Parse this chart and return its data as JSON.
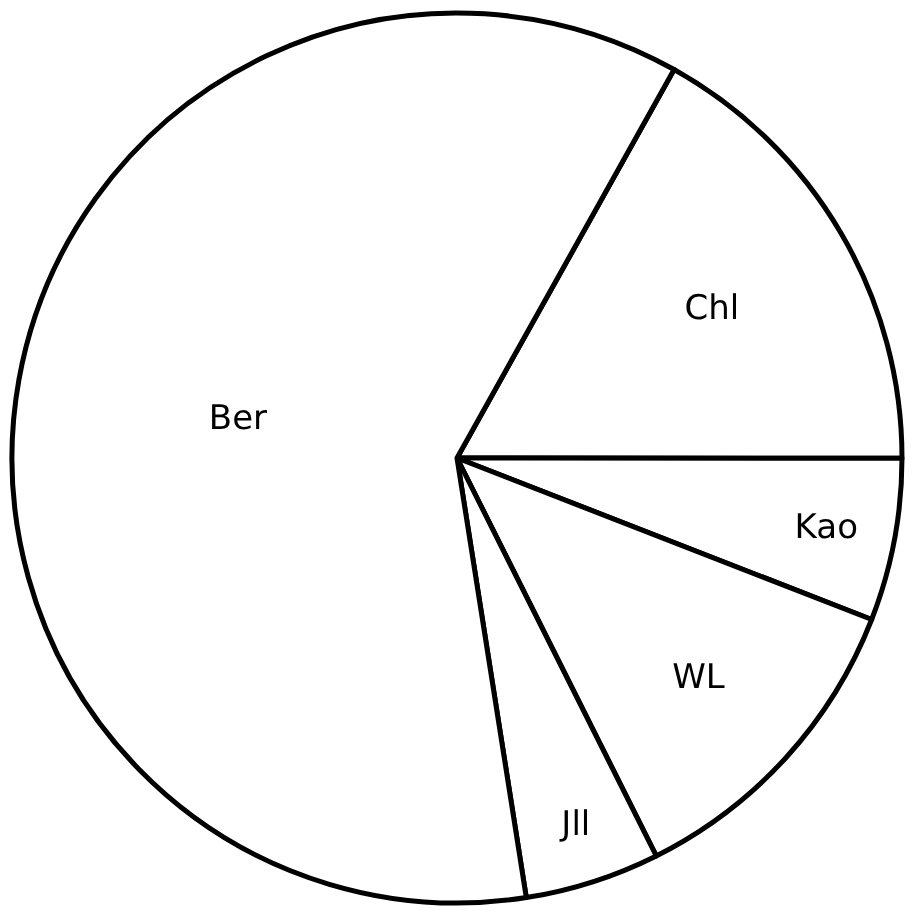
{
  "chart_data": {
    "type": "pie",
    "categories": [
      "Chl",
      "Kao",
      "WL",
      "Jll",
      "Ber"
    ],
    "values": [
      16.9,
      5.9,
      11.7,
      4.9,
      60.6
    ],
    "colors": [
      "#ffffff",
      "#ffffff",
      "#ffffff",
      "#ffffff",
      "#ffffff"
    ],
    "legend": false
  }
}
